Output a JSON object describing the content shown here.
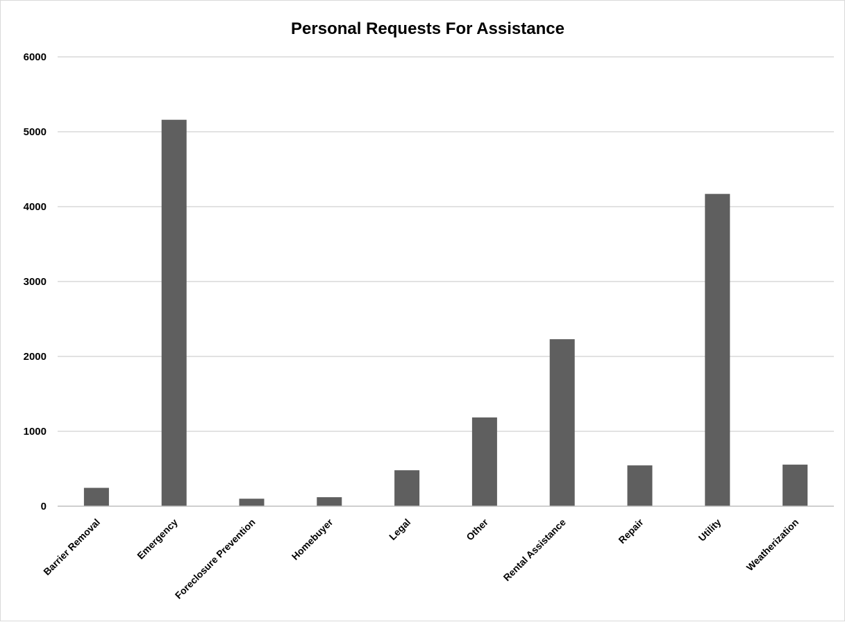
{
  "chart_data": {
    "type": "bar",
    "title": "Personal Requests For Assistance",
    "xlabel": "",
    "ylabel": "",
    "categories": [
      "Barrier Removal",
      "Emergency",
      "Foreclosure Prevention",
      "Homebuyer",
      "Legal",
      "Other",
      "Rental Assistance",
      "Repair",
      "Utility",
      "Weatherization"
    ],
    "values": [
      245,
      5160,
      100,
      120,
      480,
      1185,
      2230,
      545,
      4170,
      555
    ],
    "ylim": [
      0,
      6000
    ],
    "yticks": [
      "0",
      "1000",
      "2000",
      "3000",
      "4000",
      "5000",
      "6000"
    ],
    "grid": true,
    "legend": "none",
    "colors": {
      "bar": "#5f5f5f",
      "grid": "#d9d9d9",
      "axis": "#bfbfbf"
    }
  }
}
